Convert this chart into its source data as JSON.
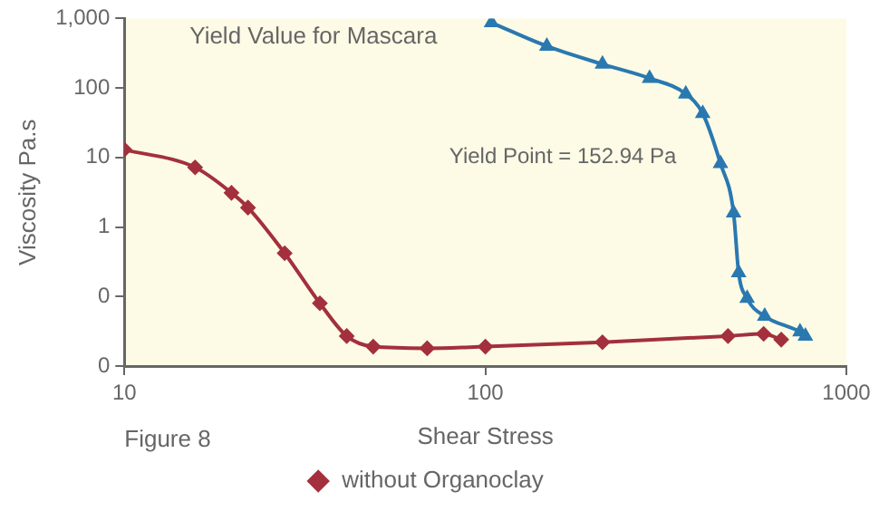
{
  "chart_data": {
    "type": "line",
    "title": "Yield Value for Mascara",
    "xlabel": "Shear Stress",
    "ylabel": "Viscosity Pa.s",
    "annotations": [
      "Yield Point = 152.94 Pa",
      "Figure 8"
    ],
    "log": "xy",
    "grid": false,
    "legend": "bottom",
    "xlim": [
      10,
      1000
    ],
    "xticks": [
      10,
      100,
      1000
    ],
    "ylim": [
      0.01,
      1000
    ],
    "yticks": [
      {
        "value": 0.01,
        "label": "0"
      },
      {
        "value": 0.1,
        "label": "0"
      },
      1,
      10,
      100,
      {
        "value": 1000,
        "label": "1,000"
      }
    ],
    "series": [
      {
        "name": "without Organoclay",
        "color": "#a3303c",
        "marker": "diamond",
        "x": [
          10,
          15.7,
          19.8,
          22,
          27.8,
          34.8,
          41.3,
          48.9,
          69,
          100,
          211,
          470,
          590,
          660
        ],
        "values": [
          13,
          7.2,
          3.1,
          1.9,
          0.42,
          0.08,
          0.027,
          0.019,
          0.018,
          0.019,
          0.022,
          0.027,
          0.029,
          0.024
        ]
      },
      {
        "color": "#2a78b0",
        "marker": "triangle",
        "x": [
          104,
          148,
          211,
          285,
          359,
          400,
          448,
          487,
          503,
          531,
          594,
          744,
          770
        ],
        "values": [
          870,
          400,
          220,
          138,
          82,
          43,
          8.2,
          1.6,
          0.22,
          0.094,
          0.052,
          0.031,
          0.027
        ]
      }
    ]
  }
}
